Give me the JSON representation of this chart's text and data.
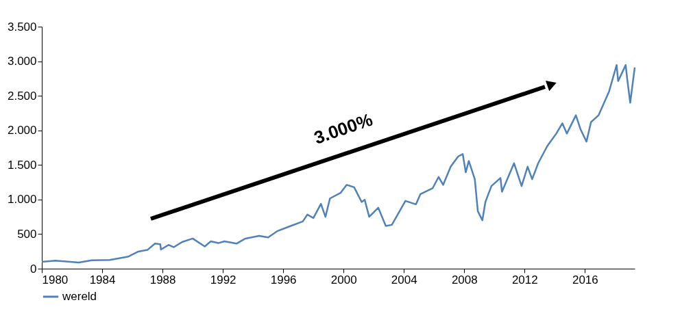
{
  "chart_data": {
    "type": "line",
    "annotations": [
      "3.000%"
    ],
    "series": [
      {
        "name": "wereld",
        "color": "#4f81bd",
        "x": [
          1980.0,
          1980.9,
          1982.45,
          1983.3,
          1984.5,
          1985.7,
          1986.4,
          1987.0,
          1987.5,
          1987.85,
          1987.9,
          1988.4,
          1988.75,
          1989.3,
          1990.0,
          1990.8,
          1991.2,
          1991.7,
          1992.1,
          1992.9,
          1993.5,
          1994.4,
          1995.0,
          1995.6,
          1996.5,
          1997.3,
          1997.6,
          1998.0,
          1998.5,
          1998.8,
          1999.1,
          1999.8,
          2000.2,
          2000.7,
          2001.2,
          2001.4,
          2001.7,
          2002.3,
          2002.8,
          2003.2,
          2004.1,
          2004.8,
          2005.1,
          2005.9,
          2006.3,
          2006.6,
          2007.1,
          2007.6,
          2007.9,
          2008.1,
          2008.3,
          2008.7,
          2008.9,
          2009.2,
          2009.4,
          2009.8,
          2010.4,
          2010.5,
          2011.3,
          2011.8,
          2012.2,
          2012.5,
          2012.9,
          2013.5,
          2014.1,
          2014.5,
          2014.8,
          2015.4,
          2015.7,
          2016.1,
          2016.4,
          2016.9,
          2017.6,
          2018.1,
          2018.2,
          2018.7,
          2018.8,
          2019.0,
          2019.3
        ],
        "values": [
          100,
          115,
          90,
          122,
          127,
          172,
          248,
          271,
          363,
          353,
          277,
          344,
          311,
          386,
          436,
          321,
          396,
          370,
          396,
          363,
          436,
          475,
          452,
          542,
          618,
          683,
          782,
          733,
          938,
          750,
          1016,
          1096,
          1212,
          1178,
          964,
          997,
          750,
          881,
          618,
          634,
          980,
          931,
          1079,
          1162,
          1327,
          1212,
          1475,
          1624,
          1657,
          1393,
          1558,
          1294,
          832,
          700,
          964,
          1195,
          1311,
          1113,
          1525,
          1195,
          1475,
          1294,
          1525,
          1772,
          1954,
          2103,
          1954,
          2218,
          2020,
          1838,
          2119,
          2218,
          2564,
          2945,
          2713,
          2945,
          2746,
          2400,
          2911
        ]
      }
    ],
    "xlim": [
      1980,
      2019.3
    ],
    "xticks": [
      1980,
      1984,
      1988,
      1992,
      1996,
      2000,
      2004,
      2008,
      2012,
      2016
    ],
    "ylim": [
      0,
      3500
    ],
    "yticks": [
      0,
      {
        "value": 500,
        "label": "500"
      },
      {
        "value": 1000,
        "label": "1.000"
      },
      {
        "value": 1500,
        "label": "1.500"
      },
      {
        "value": 2000,
        "label": "2.000"
      },
      {
        "value": 2500,
        "label": "2.500"
      },
      {
        "value": 3000,
        "label": "3.000"
      },
      {
        "value": 3500,
        "label": "3.500"
      }
    ],
    "grid": false,
    "legend": "bottom",
    "marker": "none",
    "line_style": "solid"
  }
}
